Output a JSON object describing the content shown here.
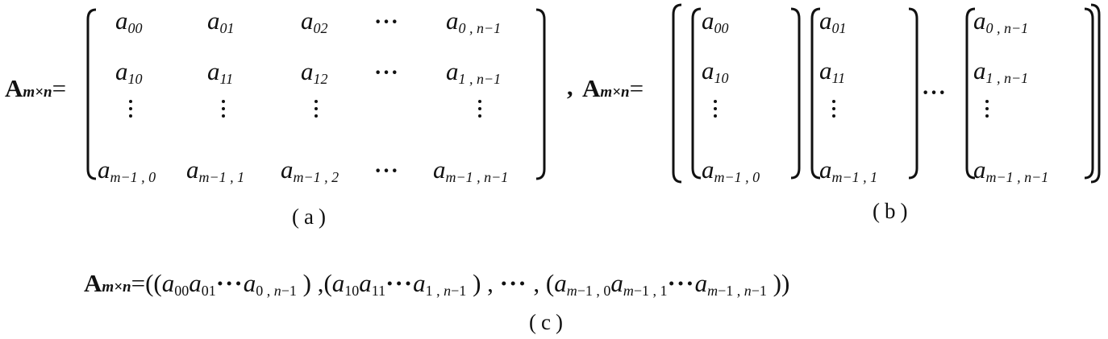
{
  "matrix_symbol": "A",
  "dim_subscript": "m×n",
  "equals": "=",
  "comma": ",",
  "hdots": "···",
  "captions": {
    "a": "(a)",
    "b": "(b)",
    "c": "(c)"
  },
  "matrix_a": {
    "rows": [
      [
        {
          "b": "a",
          "s": "00"
        },
        {
          "b": "a",
          "s": "01"
        },
        {
          "b": "a",
          "s": "02"
        },
        {
          "b": "···"
        },
        {
          "b": "a",
          "s": "0 , n−1"
        }
      ],
      [
        {
          "b": "a",
          "s": "10"
        },
        {
          "b": "a",
          "s": "11"
        },
        {
          "b": "a",
          "s": "12"
        },
        {
          "b": "···"
        },
        {
          "b": "a",
          "s": "1 , n−1"
        }
      ],
      [
        {
          "b": "⋮"
        },
        {
          "b": "⋮"
        },
        {
          "b": "⋮"
        },
        {
          "b": ""
        },
        {
          "b": "⋮"
        }
      ],
      [
        {
          "b": "a",
          "s": "m−1 , 0"
        },
        {
          "b": "a",
          "s": "m−1 , 1"
        },
        {
          "b": "a",
          "s": "m−1 , 2"
        },
        {
          "b": "···"
        },
        {
          "b": "a",
          "s": "m−1 , n−1"
        }
      ]
    ]
  },
  "matrix_b": {
    "columns": [
      [
        {
          "b": "a",
          "s": "00"
        },
        {
          "b": "a",
          "s": "10"
        },
        {
          "b": "⋮"
        },
        {
          "b": "a",
          "s": "m−1 , 0"
        }
      ],
      [
        {
          "b": "a",
          "s": "01"
        },
        {
          "b": "a",
          "s": "11"
        },
        {
          "b": "⋮"
        },
        {
          "b": "a",
          "s": "m−1 , 1"
        }
      ],
      [
        {
          "b": "a",
          "s": "0 , n−1"
        },
        {
          "b": "a",
          "s": "1 , n−1"
        },
        {
          "b": "⋮"
        },
        {
          "b": "a",
          "s": "m−1 , n−1"
        }
      ]
    ]
  },
  "equation_c": {
    "groups": [
      [
        {
          "b": "a",
          "s": "00"
        },
        {
          "b": "a",
          "s": "01"
        },
        {
          "b": "···"
        },
        {
          "b": "a",
          "s": "0 , n−1"
        }
      ],
      [
        {
          "b": "a",
          "s": "10"
        },
        {
          "b": "a",
          "s": "11"
        },
        {
          "b": "···"
        },
        {
          "b": "a",
          "s": "1 , n−1"
        }
      ],
      [
        {
          "b": "a",
          "s": "m−1 , 0"
        },
        {
          "b": "a",
          "s": "m−1 , 1"
        },
        {
          "b": "···"
        },
        {
          "b": "a",
          "s": "m−1 , n−1"
        }
      ]
    ],
    "separator": "···"
  }
}
